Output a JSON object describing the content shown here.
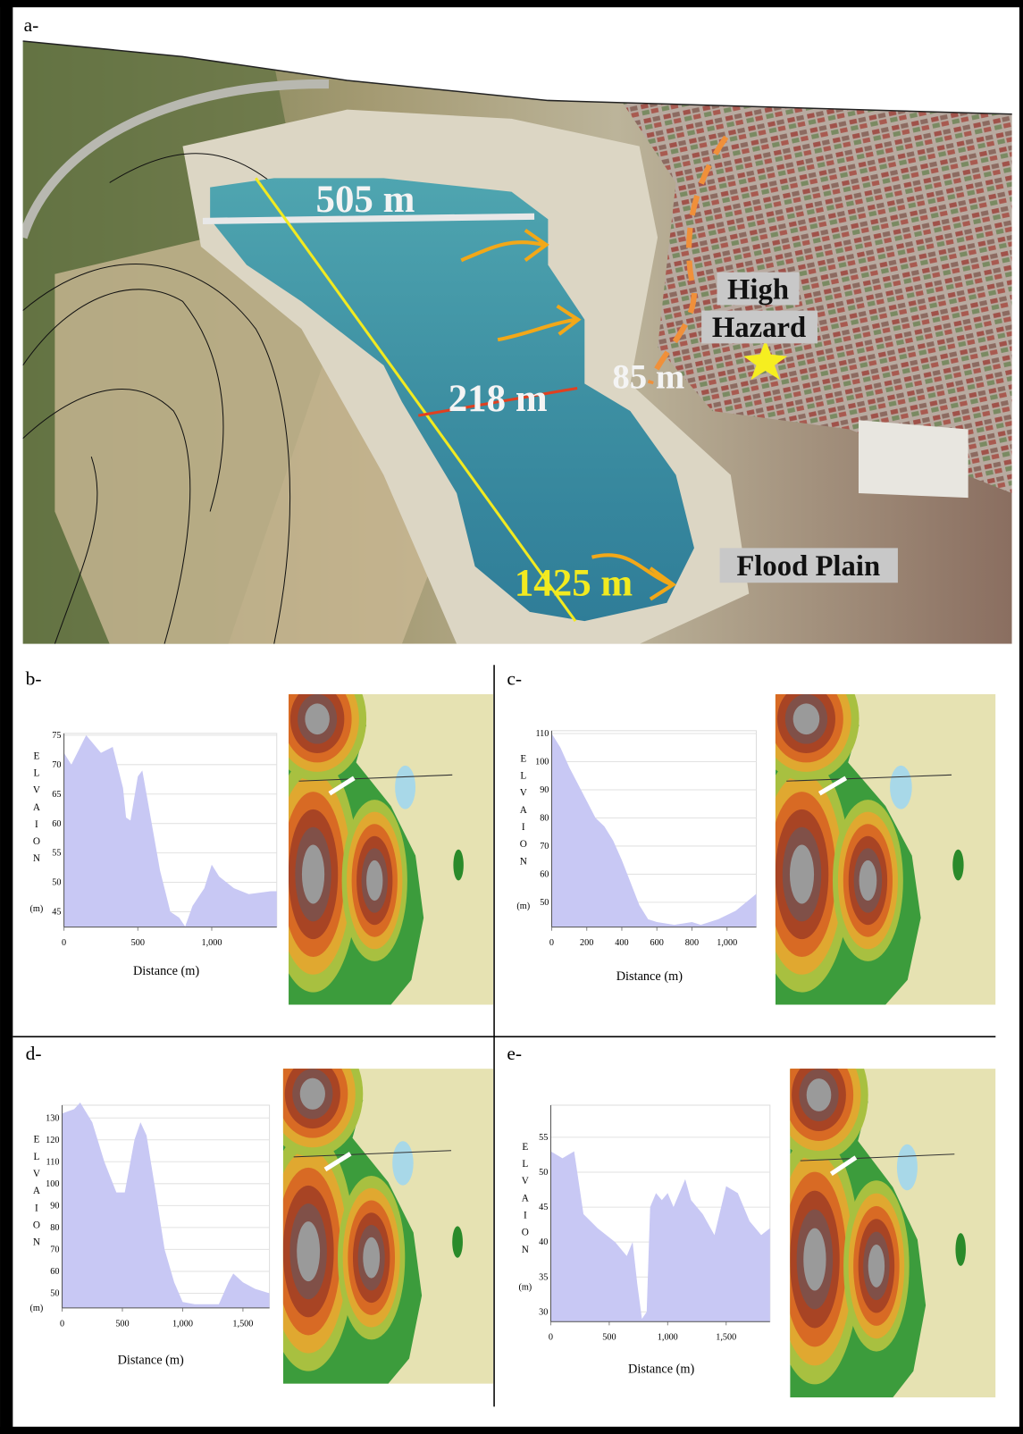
{
  "panel_a": {
    "label": "a-",
    "annotations": {
      "width": "505 m",
      "narrow": "218 m",
      "distance": "85 m",
      "length": "1425 m",
      "hazard_1": "High",
      "hazard_2": "Hazard",
      "flood": "Flood Plain"
    }
  },
  "chart_data": [
    {
      "type": "area",
      "panel": "b-",
      "ylabel": "ELVAION",
      "yunit": "(m)",
      "xlabel": "Distance (m)",
      "color": "#c8c8f4",
      "grid": true,
      "x": [
        0,
        50,
        150,
        250,
        330,
        400,
        420,
        450,
        500,
        530,
        580,
        650,
        720,
        780,
        820,
        870,
        950,
        1000,
        1050,
        1150,
        1250,
        1400,
        1440
      ],
      "values": [
        72,
        70,
        75,
        72,
        73,
        66,
        61,
        60.5,
        68,
        69,
        62,
        52,
        45,
        44,
        42.5,
        46,
        49,
        53,
        51,
        49,
        48,
        48.5,
        48.5
      ],
      "xlim": [
        0,
        1440
      ],
      "ylim": [
        42.4,
        75.3
      ],
      "xticks": [
        0,
        500,
        {
          "value": 1000,
          "label": "1,000"
        }
      ],
      "yticks": [
        45,
        50,
        55,
        60,
        65,
        70,
        75
      ]
    },
    {
      "type": "area",
      "panel": "c-",
      "ylabel": "ELVAION",
      "yunit": "(m)",
      "xlabel": "Distance (m)",
      "color": "#c8c8f4",
      "grid": true,
      "x": [
        0,
        50,
        100,
        150,
        200,
        250,
        300,
        350,
        400,
        450,
        500,
        550,
        600,
        700,
        800,
        850,
        950,
        1050,
        1167
      ],
      "values": [
        110,
        105,
        98,
        92,
        86,
        80,
        77,
        72,
        65,
        57,
        49,
        44,
        43,
        42,
        43,
        42,
        44,
        47,
        53
      ],
      "xlim": [
        0,
        1167
      ],
      "ylim": [
        41.2,
        111
      ],
      "xticks": [
        0,
        200,
        400,
        600,
        800,
        {
          "value": 1000,
          "label": "1,000"
        }
      ],
      "yticks": [
        50,
        60,
        70,
        80,
        90,
        100,
        110
      ]
    },
    {
      "type": "area",
      "panel": "d-",
      "ylabel": "ELVAION",
      "yunit": "(m)",
      "xlabel": "Distance (m)",
      "color": "#c8c8f4",
      "grid": true,
      "x": [
        0,
        100,
        150,
        250,
        350,
        450,
        520,
        600,
        650,
        700,
        780,
        850,
        930,
        1000,
        1100,
        1300,
        1380,
        1420,
        1500,
        1600,
        1720
      ],
      "values": [
        132,
        134,
        137,
        128,
        110,
        96,
        96,
        120,
        128,
        122,
        95,
        70,
        55,
        46,
        45,
        45,
        55,
        59,
        55,
        52,
        50
      ],
      "xlim": [
        0,
        1720
      ],
      "ylim": [
        43.3,
        135.8
      ],
      "xticks": [
        0,
        500,
        {
          "value": 1000,
          "label": "1,000"
        },
        {
          "value": 1500,
          "label": "1,500"
        }
      ],
      "yticks": [
        50,
        60,
        70,
        80,
        90,
        100,
        110,
        120,
        130
      ]
    },
    {
      "type": "area",
      "panel": "e-",
      "ylabel": "ELVAION",
      "yunit": "(m)",
      "xlabel": "Distance (m)",
      "color": "#c8c8f4",
      "grid": true,
      "x": [
        0,
        100,
        200,
        280,
        400,
        550,
        650,
        700,
        740,
        780,
        820,
        850,
        900,
        950,
        1000,
        1050,
        1100,
        1150,
        1200,
        1300,
        1400,
        1500,
        1600,
        1700,
        1800,
        1875
      ],
      "values": [
        53,
        52,
        53,
        44,
        42,
        40,
        38,
        40,
        34,
        29,
        30,
        45,
        47,
        46,
        47,
        45,
        47,
        49,
        46,
        44,
        41,
        48,
        47,
        43,
        41,
        42
      ],
      "xlim": [
        0,
        1875
      ],
      "ylim": [
        28.6,
        59.6
      ],
      "xticks": [
        0,
        500,
        {
          "value": 1000,
          "label": "1,000"
        },
        {
          "value": 1500,
          "label": "1,500"
        }
      ],
      "yticks": [
        30,
        35,
        40,
        45,
        50,
        55
      ]
    }
  ]
}
